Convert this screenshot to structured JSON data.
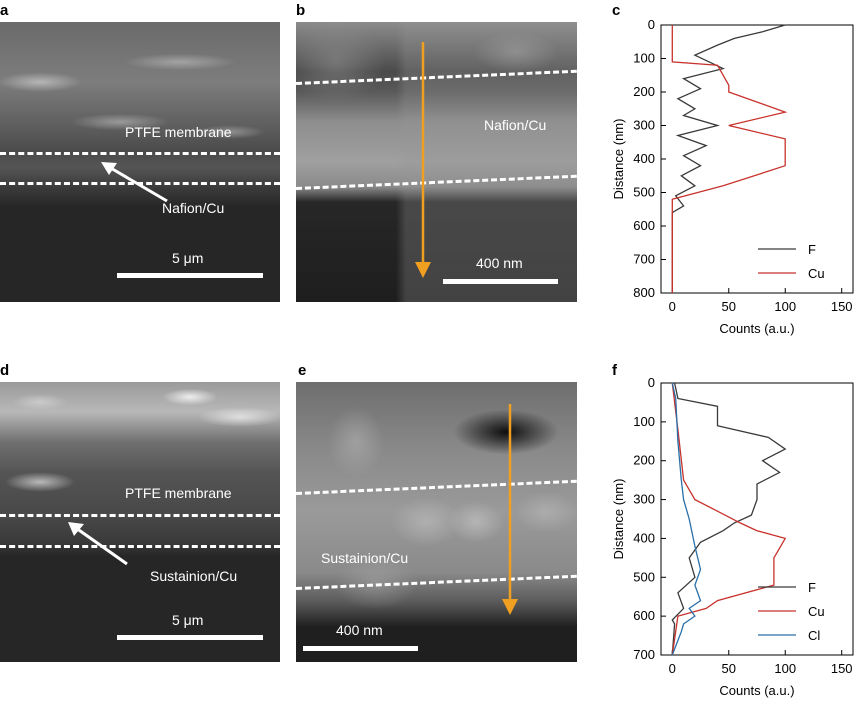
{
  "panels": {
    "a": {
      "letter": "a",
      "label_membrane": "PTFE membrane",
      "label_layer": "Nafion/Cu",
      "scalebar": "5 μm"
    },
    "b": {
      "letter": "b",
      "label_layer": "Nafion/Cu",
      "scalebar": "400 nm"
    },
    "d": {
      "letter": "d",
      "label_membrane": "PTFE membrane",
      "label_layer": "Sustainion/Cu",
      "scalebar": "5 μm"
    },
    "e": {
      "letter": "e",
      "label_layer": "Sustainion/Cu",
      "scalebar": "400 nm"
    },
    "c": {
      "letter": "c"
    },
    "f": {
      "letter": "f"
    }
  },
  "colors": {
    "F": "#3a3a3a",
    "Cu": "#c8322c",
    "Cl": "#2a6fa8",
    "arrow": "#f0a020"
  },
  "chart_data": [
    {
      "id": "c",
      "type": "line",
      "xlabel": "Counts (a.u.)",
      "ylabel": "Distance (nm)",
      "xlim": [
        -10,
        160
      ],
      "ylim": [
        0,
        800
      ],
      "y_inverted": true,
      "xticks": [
        0,
        50,
        100,
        150
      ],
      "yticks": [
        0,
        100,
        200,
        300,
        400,
        500,
        600,
        700,
        800
      ],
      "legend": "bottom-right",
      "series": [
        {
          "name": "F",
          "color": "#3a3a3a",
          "x": [
            100,
            80,
            55,
            40,
            20,
            45,
            10,
            25,
            5,
            20,
            10,
            40,
            5,
            30,
            10,
            25,
            8,
            20,
            3,
            10,
            0,
            0
          ],
          "y": [
            0,
            20,
            40,
            60,
            90,
            130,
            160,
            190,
            220,
            250,
            270,
            300,
            330,
            360,
            390,
            420,
            450,
            480,
            510,
            540,
            560,
            800
          ]
        },
        {
          "name": "Cu",
          "color": "#c8322c",
          "x": [
            0,
            0,
            40,
            50,
            50,
            100,
            50,
            100,
            100,
            45,
            0,
            0
          ],
          "y": [
            0,
            110,
            120,
            180,
            200,
            260,
            300,
            340,
            420,
            480,
            520,
            800
          ]
        }
      ]
    },
    {
      "id": "f",
      "type": "line",
      "xlabel": "Counts (a.u.)",
      "ylabel": "Distance (nm)",
      "xlim": [
        -10,
        160
      ],
      "ylim": [
        0,
        700
      ],
      "y_inverted": true,
      "xticks": [
        0,
        50,
        100,
        150
      ],
      "yticks": [
        0,
        100,
        200,
        300,
        400,
        500,
        600,
        700
      ],
      "legend": "bottom-right",
      "series": [
        {
          "name": "F",
          "color": "#3a3a3a",
          "x": [
            2,
            5,
            40,
            40,
            85,
            100,
            80,
            95,
            75,
            75,
            70,
            55,
            45,
            25,
            15,
            20,
            5,
            10,
            0,
            2,
            0
          ],
          "y": [
            0,
            40,
            60,
            110,
            140,
            170,
            200,
            230,
            260,
            300,
            340,
            360,
            380,
            410,
            450,
            500,
            540,
            580,
            610,
            620,
            700
          ]
        },
        {
          "name": "Cu",
          "color": "#c8322c",
          "x": [
            0,
            5,
            10,
            20,
            40,
            60,
            75,
            100,
            90,
            90,
            40,
            30,
            5,
            0
          ],
          "y": [
            0,
            120,
            250,
            300,
            330,
            360,
            380,
            400,
            450,
            520,
            560,
            580,
            600,
            700
          ]
        },
        {
          "name": "Cl",
          "color": "#2a6fa8",
          "x": [
            0,
            3,
            5,
            8,
            10,
            15,
            20,
            25,
            20,
            25,
            15,
            20,
            10,
            8,
            0
          ],
          "y": [
            0,
            40,
            150,
            250,
            300,
            350,
            420,
            480,
            520,
            560,
            580,
            600,
            620,
            640,
            700
          ]
        }
      ]
    }
  ]
}
